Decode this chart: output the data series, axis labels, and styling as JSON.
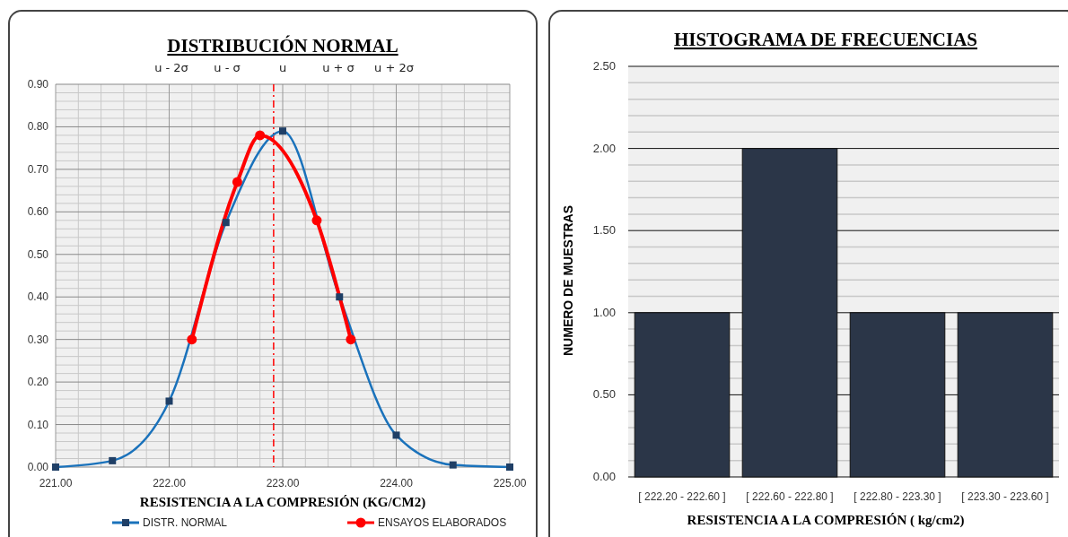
{
  "chart_data": [
    {
      "type": "line",
      "title": "DISTRIBUCIÓN NORMAL",
      "xlabel": "RESISTENCIA A LA COMPRESIÓN (KG/CM2)",
      "annotations": [
        "u - 2σ",
        "u - σ",
        "u",
        "u + σ",
        "u + 2σ"
      ],
      "xlim": [
        221,
        225
      ],
      "xticks": [
        {
          "value": 221,
          "label": "221.00"
        },
        {
          "value": 222,
          "label": "222.00"
        },
        {
          "value": 223,
          "label": "223.00"
        },
        {
          "value": 224,
          "label": "224.00"
        },
        {
          "value": 225,
          "label": "225.00"
        }
      ],
      "ylim": [
        0,
        0.9
      ],
      "yticks": [
        {
          "value": 0,
          "label": "0.00"
        },
        {
          "value": 0.1,
          "label": "0.10"
        },
        {
          "value": 0.2,
          "label": "0.20"
        },
        {
          "value": 0.3,
          "label": "0.30"
        },
        {
          "value": 0.4,
          "label": "0.40"
        },
        {
          "value": 0.5,
          "label": "0.50"
        },
        {
          "value": 0.6,
          "label": "0.60"
        },
        {
          "value": 0.7,
          "label": "0.70"
        },
        {
          "value": 0.8,
          "label": "0.80"
        },
        {
          "value": 0.9,
          "label": "0.90"
        }
      ],
      "grid": true,
      "legend": "bottom",
      "ref_lines": [
        {
          "axis": "x",
          "value": 222.92,
          "color": "#ff0000",
          "line_style": "dashed"
        }
      ],
      "series": [
        {
          "name": "DISTR. NORMAL",
          "color": "#1a72bb",
          "marker": "square",
          "x": [
            221,
            221.5,
            222,
            222.5,
            223,
            223.5,
            224,
            224.5,
            225
          ],
          "values": [
            0,
            0.015,
            0.155,
            0.575,
            0.79,
            0.4,
            0.075,
            0.005,
            0
          ]
        },
        {
          "name": "ENSAYOS ELABORADOS",
          "color": "#ff0000",
          "marker": "circle",
          "x": [
            222.2,
            222.6,
            222.8,
            223.3,
            223.6
          ],
          "values": [
            0.3,
            0.67,
            0.78,
            0.58,
            0.3
          ]
        }
      ]
    },
    {
      "type": "bar",
      "title": "HISTOGRAMA DE FRECUENCIAS",
      "xlabel": "RESISTENCIA A LA COMPRESIÓN ( kg/cm2)",
      "ylabel": "NUMERO DE MUESTRAS",
      "categories": [
        "[ 222.20 - 222.60 ]",
        "[ 222.60 - 222.80 ]",
        "[ 222.80 - 223.30 ]",
        "[ 223.30 - 223.60 ]"
      ],
      "values": [
        1,
        2,
        1,
        1
      ],
      "color": "#2b3648",
      "ylim": [
        0,
        2.5
      ],
      "yticks": [
        {
          "value": 0,
          "label": "0.00"
        },
        {
          "value": 0.5,
          "label": "0.50"
        },
        {
          "value": 1,
          "label": "1.00"
        },
        {
          "value": 1.5,
          "label": "1.50"
        },
        {
          "value": 2,
          "label": "2.00"
        },
        {
          "value": 2.5,
          "label": "2.50"
        }
      ],
      "grid": "y"
    }
  ]
}
